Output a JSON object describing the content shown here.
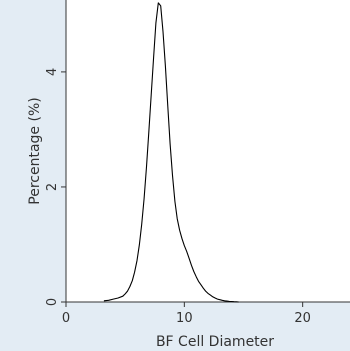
{
  "chart_data": {
    "type": "line",
    "title": "",
    "xlabel": "BF Cell Diameter",
    "ylabel": "Percentage (%)",
    "xlim": [
      0,
      24
    ],
    "ylim": [
      0,
      5.25
    ],
    "xticks": [
      0,
      10,
      20
    ],
    "yticks": [
      0,
      2,
      4
    ],
    "grid": false,
    "legend": "none",
    "colors": {
      "line": "#000000",
      "background": "#e3ecf4",
      "plot_bg": "#ffffff",
      "axis": "#333333"
    },
    "series": [
      {
        "x": [
          3.2,
          3.6,
          4.0,
          4.4,
          4.8,
          5.0,
          5.2,
          5.4,
          5.6,
          5.8,
          6.0,
          6.2,
          6.4,
          6.6,
          6.8,
          7.0,
          7.2,
          7.4,
          7.6,
          7.8,
          8.0,
          8.2,
          8.4,
          8.6,
          8.8,
          9.0,
          9.2,
          9.4,
          9.6,
          9.8,
          10.0,
          10.2,
          10.4,
          10.6,
          10.8,
          11.0,
          11.2,
          11.4,
          11.6,
          11.8,
          12.0,
          12.2,
          12.4,
          12.6,
          12.8,
          13.0,
          13.2,
          13.4,
          13.6,
          13.8,
          14.0,
          14.2,
          14.4,
          14.6
        ],
        "y": [
          0.02,
          0.03,
          0.05,
          0.07,
          0.1,
          0.14,
          0.19,
          0.27,
          0.37,
          0.52,
          0.72,
          1.0,
          1.35,
          1.8,
          2.35,
          2.95,
          3.6,
          4.25,
          4.85,
          5.2,
          5.15,
          4.7,
          4.1,
          3.4,
          2.75,
          2.2,
          1.75,
          1.45,
          1.25,
          1.1,
          0.98,
          0.88,
          0.76,
          0.64,
          0.53,
          0.44,
          0.36,
          0.3,
          0.24,
          0.19,
          0.15,
          0.12,
          0.09,
          0.07,
          0.05,
          0.04,
          0.03,
          0.02,
          0.015,
          0.01,
          0.008,
          0.005,
          0.003,
          0.0
        ]
      }
    ]
  }
}
